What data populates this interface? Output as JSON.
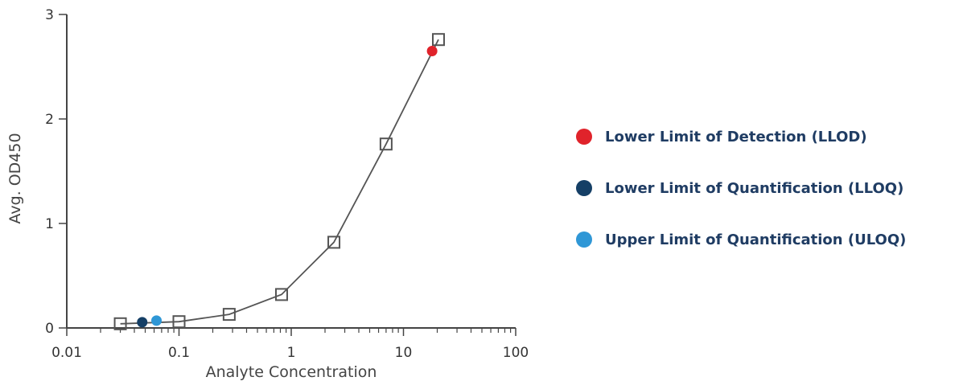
{
  "chart_data": {
    "type": "scatter",
    "xlabel": "Analyte Concentration",
    "ylabel": "Avg. OD450",
    "xscale": "log",
    "xlim": [
      0.01,
      100
    ],
    "ylim": [
      0,
      3
    ],
    "xticks": [
      {
        "value": 0.01,
        "label": "0.01"
      },
      {
        "value": 0.1,
        "label": "0.1"
      },
      {
        "value": 1,
        "label": "1"
      },
      {
        "value": 10,
        "label": "10"
      },
      {
        "value": 100,
        "label": "100"
      }
    ],
    "yticks": [
      {
        "value": 0,
        "label": "0"
      },
      {
        "value": 1,
        "label": "1"
      },
      {
        "value": 2,
        "label": "2"
      },
      {
        "value": 3,
        "label": "3"
      }
    ],
    "grid": false,
    "legend_position": "right",
    "series": [
      {
        "marker": "open-square",
        "connected": true,
        "color": "#555555",
        "points": [
          {
            "x": 0.03,
            "y": 0.04
          },
          {
            "x": 0.1,
            "y": 0.06
          },
          {
            "x": 0.28,
            "y": 0.13
          },
          {
            "x": 0.82,
            "y": 0.32
          },
          {
            "x": 2.4,
            "y": 0.82
          },
          {
            "x": 7.0,
            "y": 1.76
          },
          {
            "x": 20.5,
            "y": 2.76
          }
        ]
      }
    ],
    "markers": [
      {
        "name": "Lower Limit of Detection (LLOD)",
        "color": "#e0232b",
        "x": 18.0,
        "y": 2.65
      },
      {
        "name": "Lower Limit of Quantification (LLOQ)",
        "color": "#153f66",
        "x": 0.047,
        "y": 0.055
      },
      {
        "name": "Upper Limit of Quantification (ULOQ)",
        "color": "#2f97d6",
        "x": 0.063,
        "y": 0.07
      }
    ]
  }
}
